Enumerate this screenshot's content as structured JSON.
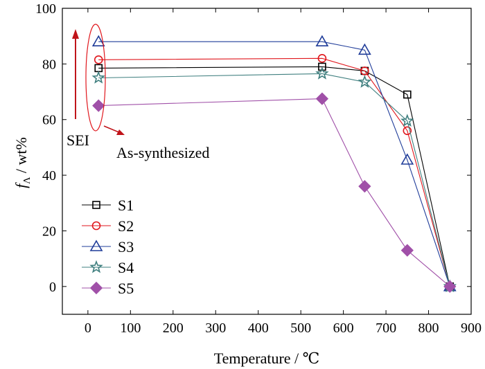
{
  "chart_data": {
    "type": "line",
    "xlabel": "Temperature / ℃",
    "ylabel_symbol": "f",
    "ylabel_subscript": "Λ",
    "ylabel_unit": " / wt%",
    "xlim": [
      -60,
      900
    ],
    "ylim": [
      -10,
      100
    ],
    "xticks": [
      0,
      100,
      200,
      300,
      400,
      500,
      600,
      700,
      800,
      900
    ],
    "yticks": [
      0,
      20,
      40,
      60,
      80,
      100
    ],
    "grid": false,
    "legend_position": "lower-left",
    "annotations": {
      "sei": "SEI",
      "as_synthesized": "As-synthesized"
    },
    "series": [
      {
        "name": "S1",
        "marker": "square",
        "color": "#000000",
        "x": [
          25,
          550,
          650,
          750,
          850
        ],
        "y": [
          78.5,
          79,
          77.5,
          69,
          0
        ]
      },
      {
        "name": "S2",
        "marker": "circle",
        "color": "#e0161c",
        "x": [
          25,
          550,
          650,
          750,
          850
        ],
        "y": [
          81.5,
          82,
          77.5,
          56,
          0
        ]
      },
      {
        "name": "S3",
        "marker": "triangle",
        "color": "#1f3c99",
        "x": [
          25,
          550,
          650,
          750,
          850
        ],
        "y": [
          88,
          88,
          85,
          45.5,
          0
        ]
      },
      {
        "name": "S4",
        "marker": "star",
        "color": "#3f7f7f",
        "x": [
          25,
          550,
          650,
          750,
          850
        ],
        "y": [
          75,
          76.5,
          73.5,
          59.5,
          0
        ]
      },
      {
        "name": "S5",
        "marker": "diamond",
        "color": "#a050a8",
        "x": [
          25,
          550,
          650,
          750,
          850
        ],
        "y": [
          65,
          67.5,
          36,
          13,
          0
        ]
      }
    ]
  }
}
